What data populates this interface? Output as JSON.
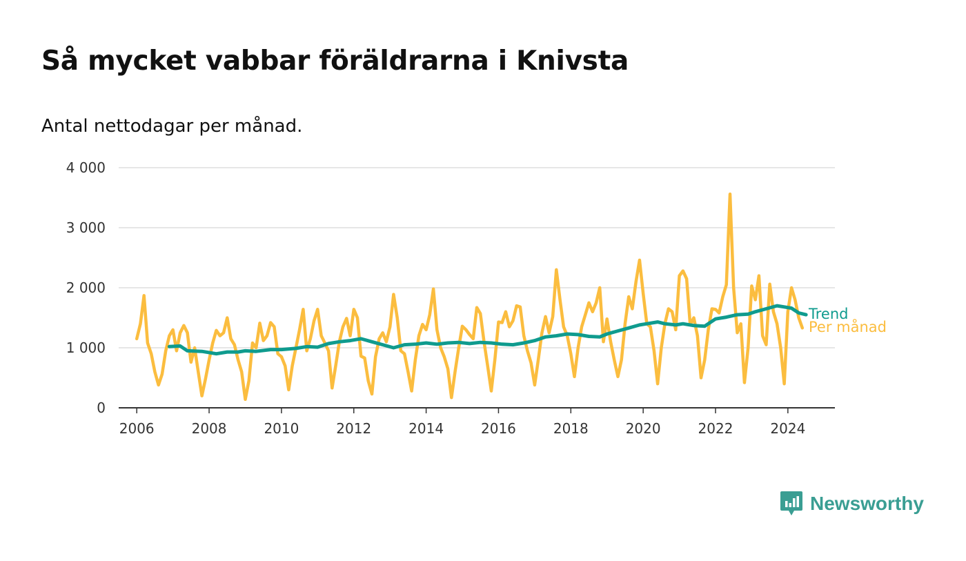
{
  "title": "Så mycket vabbar föräldrarna i Knivsta",
  "subtitle": "Antal nettodagar per månad.",
  "brand": {
    "name": "Newsworthy",
    "logo_icon": "bar-chart-badge-icon"
  },
  "colors": {
    "monthly": "#fbbd3f",
    "trend": "#0f9b8e",
    "grid": "#dddddd",
    "axis": "#333333",
    "brand": "#3a9e93"
  },
  "chart_data": {
    "type": "line",
    "title": "Så mycket vabbar föräldrarna i Knivsta",
    "subtitle": "Antal nettodagar per månad.",
    "xlabel": "",
    "ylabel": "",
    "xlim": [
      2005.5,
      2025.3
    ],
    "ylim": [
      0,
      4000
    ],
    "grid": true,
    "y_ticks": [
      0,
      1000,
      2000,
      3000,
      4000
    ],
    "y_tick_labels": [
      "0",
      "1 000",
      "2 000",
      "3 000",
      "4 000"
    ],
    "x_ticks": [
      2006,
      2008,
      2010,
      2012,
      2014,
      2016,
      2018,
      2020,
      2022,
      2024
    ],
    "x_tick_labels": [
      "2006",
      "2008",
      "2010",
      "2012",
      "2014",
      "2016",
      "2018",
      "2020",
      "2022",
      "2024"
    ],
    "legend": "inline-right",
    "series": [
      {
        "name": "Per månad",
        "color": "#fbbd3f",
        "points": [
          [
            2006.0,
            1150
          ],
          [
            2006.1,
            1400
          ],
          [
            2006.2,
            1870
          ],
          [
            2006.3,
            1080
          ],
          [
            2006.4,
            900
          ],
          [
            2006.5,
            600
          ],
          [
            2006.6,
            380
          ],
          [
            2006.7,
            560
          ],
          [
            2006.8,
            950
          ],
          [
            2006.9,
            1200
          ],
          [
            2007.0,
            1300
          ],
          [
            2007.1,
            950
          ],
          [
            2007.2,
            1250
          ],
          [
            2007.3,
            1370
          ],
          [
            2007.4,
            1250
          ],
          [
            2007.5,
            760
          ],
          [
            2007.6,
            1000
          ],
          [
            2007.7,
            600
          ],
          [
            2007.8,
            200
          ],
          [
            2007.9,
            480
          ],
          [
            2008.0,
            800
          ],
          [
            2008.1,
            1080
          ],
          [
            2008.2,
            1290
          ],
          [
            2008.3,
            1200
          ],
          [
            2008.4,
            1250
          ],
          [
            2008.5,
            1500
          ],
          [
            2008.6,
            1150
          ],
          [
            2008.7,
            1050
          ],
          [
            2008.8,
            800
          ],
          [
            2008.9,
            600
          ],
          [
            2009.0,
            140
          ],
          [
            2009.1,
            450
          ],
          [
            2009.2,
            1080
          ],
          [
            2009.3,
            1000
          ],
          [
            2009.4,
            1410
          ],
          [
            2009.5,
            1120
          ],
          [
            2009.6,
            1200
          ],
          [
            2009.7,
            1420
          ],
          [
            2009.8,
            1350
          ],
          [
            2009.9,
            900
          ],
          [
            2010.0,
            850
          ],
          [
            2010.1,
            700
          ],
          [
            2010.2,
            300
          ],
          [
            2010.3,
            700
          ],
          [
            2010.4,
            1000
          ],
          [
            2010.5,
            1300
          ],
          [
            2010.6,
            1640
          ],
          [
            2010.7,
            950
          ],
          [
            2010.8,
            1150
          ],
          [
            2010.9,
            1450
          ],
          [
            2011.0,
            1640
          ],
          [
            2011.1,
            1200
          ],
          [
            2011.2,
            1080
          ],
          [
            2011.3,
            950
          ],
          [
            2011.4,
            330
          ],
          [
            2011.5,
            700
          ],
          [
            2011.6,
            1100
          ],
          [
            2011.7,
            1350
          ],
          [
            2011.8,
            1490
          ],
          [
            2011.9,
            1200
          ],
          [
            2012.0,
            1640
          ],
          [
            2012.1,
            1500
          ],
          [
            2012.2,
            860
          ],
          [
            2012.3,
            830
          ],
          [
            2012.4,
            450
          ],
          [
            2012.5,
            230
          ],
          [
            2012.6,
            850
          ],
          [
            2012.7,
            1150
          ],
          [
            2012.8,
            1250
          ],
          [
            2012.9,
            1100
          ],
          [
            2013.0,
            1350
          ],
          [
            2013.1,
            1890
          ],
          [
            2013.2,
            1500
          ],
          [
            2013.3,
            950
          ],
          [
            2013.4,
            900
          ],
          [
            2013.5,
            600
          ],
          [
            2013.6,
            280
          ],
          [
            2013.7,
            800
          ],
          [
            2013.8,
            1200
          ],
          [
            2013.9,
            1390
          ],
          [
            2014.0,
            1300
          ],
          [
            2014.1,
            1550
          ],
          [
            2014.2,
            1980
          ],
          [
            2014.3,
            1300
          ],
          [
            2014.4,
            1000
          ],
          [
            2014.5,
            850
          ],
          [
            2014.6,
            650
          ],
          [
            2014.7,
            170
          ],
          [
            2014.8,
            600
          ],
          [
            2014.9,
            1000
          ],
          [
            2015.0,
            1360
          ],
          [
            2015.1,
            1300
          ],
          [
            2015.2,
            1220
          ],
          [
            2015.3,
            1150
          ],
          [
            2015.4,
            1670
          ],
          [
            2015.5,
            1570
          ],
          [
            2015.6,
            1100
          ],
          [
            2015.7,
            700
          ],
          [
            2015.8,
            280
          ],
          [
            2015.9,
            800
          ],
          [
            2016.0,
            1430
          ],
          [
            2016.1,
            1420
          ],
          [
            2016.2,
            1600
          ],
          [
            2016.3,
            1350
          ],
          [
            2016.4,
            1450
          ],
          [
            2016.5,
            1700
          ],
          [
            2016.6,
            1680
          ],
          [
            2016.7,
            1200
          ],
          [
            2016.8,
            950
          ],
          [
            2016.9,
            750
          ],
          [
            2017.0,
            380
          ],
          [
            2017.1,
            800
          ],
          [
            2017.2,
            1250
          ],
          [
            2017.3,
            1520
          ],
          [
            2017.4,
            1250
          ],
          [
            2017.5,
            1520
          ],
          [
            2017.6,
            2300
          ],
          [
            2017.7,
            1800
          ],
          [
            2017.8,
            1350
          ],
          [
            2017.9,
            1200
          ],
          [
            2018.0,
            900
          ],
          [
            2018.1,
            520
          ],
          [
            2018.2,
            1000
          ],
          [
            2018.3,
            1350
          ],
          [
            2018.4,
            1550
          ],
          [
            2018.5,
            1750
          ],
          [
            2018.6,
            1600
          ],
          [
            2018.7,
            1750
          ],
          [
            2018.8,
            2000
          ],
          [
            2018.9,
            1100
          ],
          [
            2019.0,
            1480
          ],
          [
            2019.1,
            1100
          ],
          [
            2019.2,
            800
          ],
          [
            2019.3,
            520
          ],
          [
            2019.4,
            800
          ],
          [
            2019.5,
            1400
          ],
          [
            2019.6,
            1850
          ],
          [
            2019.7,
            1650
          ],
          [
            2019.8,
            2100
          ],
          [
            2019.9,
            2460
          ],
          [
            2020.0,
            1900
          ],
          [
            2020.1,
            1400
          ],
          [
            2020.2,
            1350
          ],
          [
            2020.3,
            950
          ],
          [
            2020.4,
            400
          ],
          [
            2020.5,
            1000
          ],
          [
            2020.6,
            1400
          ],
          [
            2020.7,
            1650
          ],
          [
            2020.8,
            1600
          ],
          [
            2020.9,
            1300
          ],
          [
            2021.0,
            2200
          ],
          [
            2021.1,
            2280
          ],
          [
            2021.2,
            2150
          ],
          [
            2021.3,
            1380
          ],
          [
            2021.4,
            1500
          ],
          [
            2021.5,
            1200
          ],
          [
            2021.6,
            500
          ],
          [
            2021.7,
            800
          ],
          [
            2021.8,
            1300
          ],
          [
            2021.9,
            1650
          ],
          [
            2022.0,
            1640
          ],
          [
            2022.1,
            1580
          ],
          [
            2022.2,
            1850
          ],
          [
            2022.3,
            2050
          ],
          [
            2022.4,
            3560
          ],
          [
            2022.5,
            2000
          ],
          [
            2022.6,
            1250
          ],
          [
            2022.7,
            1400
          ],
          [
            2022.8,
            420
          ],
          [
            2022.9,
            1000
          ],
          [
            2023.0,
            2030
          ],
          [
            2023.1,
            1800
          ],
          [
            2023.2,
            2200
          ],
          [
            2023.3,
            1200
          ],
          [
            2023.4,
            1050
          ],
          [
            2023.5,
            2060
          ],
          [
            2023.6,
            1600
          ],
          [
            2023.7,
            1400
          ],
          [
            2023.8,
            1000
          ],
          [
            2023.9,
            400
          ],
          [
            2024.0,
            1600
          ],
          [
            2024.1,
            2000
          ],
          [
            2024.2,
            1800
          ],
          [
            2024.3,
            1500
          ],
          [
            2024.4,
            1330
          ]
        ]
      },
      {
        "name": "Trend",
        "color": "#0f9b8e",
        "points": [
          [
            2006.9,
            1020
          ],
          [
            2007.2,
            1030
          ],
          [
            2007.4,
            950
          ],
          [
            2007.8,
            940
          ],
          [
            2008.2,
            900
          ],
          [
            2008.5,
            930
          ],
          [
            2008.8,
            930
          ],
          [
            2009.0,
            950
          ],
          [
            2009.3,
            940
          ],
          [
            2009.7,
            970
          ],
          [
            2010.0,
            970
          ],
          [
            2010.4,
            990
          ],
          [
            2010.7,
            1020
          ],
          [
            2011.0,
            1010
          ],
          [
            2011.3,
            1070
          ],
          [
            2011.6,
            1100
          ],
          [
            2011.9,
            1120
          ],
          [
            2012.2,
            1150
          ],
          [
            2012.5,
            1100
          ],
          [
            2012.8,
            1050
          ],
          [
            2013.1,
            1000
          ],
          [
            2013.4,
            1050
          ],
          [
            2013.7,
            1060
          ],
          [
            2014.0,
            1080
          ],
          [
            2014.3,
            1060
          ],
          [
            2014.6,
            1080
          ],
          [
            2014.9,
            1090
          ],
          [
            2015.2,
            1070
          ],
          [
            2015.5,
            1090
          ],
          [
            2015.8,
            1080
          ],
          [
            2016.1,
            1060
          ],
          [
            2016.4,
            1050
          ],
          [
            2016.7,
            1080
          ],
          [
            2017.0,
            1120
          ],
          [
            2017.3,
            1180
          ],
          [
            2017.6,
            1200
          ],
          [
            2017.9,
            1230
          ],
          [
            2018.2,
            1220
          ],
          [
            2018.5,
            1190
          ],
          [
            2018.8,
            1180
          ],
          [
            2019.0,
            1230
          ],
          [
            2019.3,
            1280
          ],
          [
            2019.6,
            1330
          ],
          [
            2019.9,
            1380
          ],
          [
            2020.1,
            1400
          ],
          [
            2020.4,
            1430
          ],
          [
            2020.6,
            1400
          ],
          [
            2020.9,
            1380
          ],
          [
            2021.1,
            1400
          ],
          [
            2021.4,
            1370
          ],
          [
            2021.7,
            1360
          ],
          [
            2022.0,
            1480
          ],
          [
            2022.3,
            1510
          ],
          [
            2022.6,
            1550
          ],
          [
            2022.9,
            1560
          ],
          [
            2023.1,
            1600
          ],
          [
            2023.4,
            1650
          ],
          [
            2023.7,
            1700
          ],
          [
            2023.9,
            1680
          ],
          [
            2024.1,
            1660
          ],
          [
            2024.3,
            1580
          ],
          [
            2024.5,
            1550
          ]
        ]
      }
    ]
  }
}
